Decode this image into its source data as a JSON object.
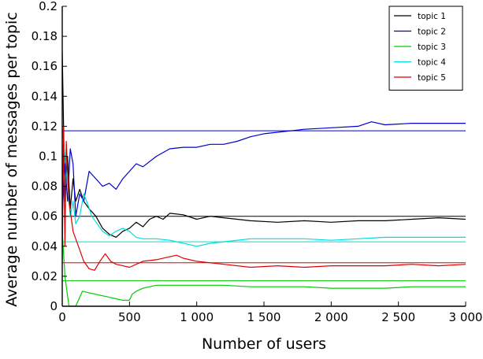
{
  "chart_data": {
    "type": "line",
    "xlabel": "Number of users",
    "ylabel": "Average number of messages per topic",
    "xlim": [
      0,
      3000
    ],
    "ylim": [
      0,
      0.2
    ],
    "x_ticks": [
      {
        "value": 0,
        "label": "0"
      },
      {
        "value": 500,
        "label": "500"
      },
      {
        "value": 1000,
        "label": "1 000"
      },
      {
        "value": 1500,
        "label": "1 500"
      },
      {
        "value": 2000,
        "label": "2 000"
      },
      {
        "value": 2500,
        "label": "2 500"
      },
      {
        "value": 3000,
        "label": "3 000"
      }
    ],
    "y_ticks": [
      {
        "value": 0,
        "label": "0"
      },
      {
        "value": 0.02,
        "label": "0.02"
      },
      {
        "value": 0.04,
        "label": "0.04"
      },
      {
        "value": 0.06,
        "label": "0.06"
      },
      {
        "value": 0.08,
        "label": "0.08"
      },
      {
        "value": 0.1,
        "label": "0.1"
      },
      {
        "value": 0.12,
        "label": "0.12"
      },
      {
        "value": 0.14,
        "label": "0.14"
      },
      {
        "value": 0.16,
        "label": "0.16"
      },
      {
        "value": 0.18,
        "label": "0.18"
      },
      {
        "value": 0.2,
        "label": "0.2"
      }
    ],
    "grid": false,
    "legend_position": "top-right",
    "series": [
      {
        "name": "topic 1",
        "color": "#000000",
        "reference": 0.06,
        "x": [
          0,
          10,
          20,
          40,
          60,
          80,
          100,
          130,
          160,
          200,
          250,
          300,
          350,
          400,
          450,
          500,
          550,
          600,
          650,
          700,
          750,
          800,
          900,
          1000,
          1100,
          1200,
          1400,
          1600,
          1800,
          2000,
          2200,
          2400,
          2600,
          2800,
          3000
        ],
        "values": [
          0.17,
          0.12,
          0.07,
          0.1,
          0.065,
          0.085,
          0.07,
          0.078,
          0.07,
          0.065,
          0.06,
          0.052,
          0.048,
          0.046,
          0.05,
          0.052,
          0.056,
          0.053,
          0.058,
          0.06,
          0.058,
          0.062,
          0.061,
          0.058,
          0.06,
          0.059,
          0.057,
          0.056,
          0.057,
          0.056,
          0.057,
          0.057,
          0.058,
          0.059,
          0.058
        ]
      },
      {
        "name": "topic 2",
        "color": "#0000cc",
        "reference": 0.117,
        "x": [
          0,
          20,
          40,
          60,
          80,
          100,
          130,
          160,
          200,
          250,
          300,
          350,
          400,
          450,
          500,
          550,
          600,
          700,
          800,
          900,
          1000,
          1100,
          1200,
          1300,
          1400,
          1500,
          1600,
          1800,
          2000,
          2200,
          2300,
          2400,
          2600,
          2800,
          3000
        ],
        "values": [
          0.06,
          0.095,
          0.07,
          0.105,
          0.095,
          0.06,
          0.075,
          0.07,
          0.09,
          0.085,
          0.08,
          0.082,
          0.078,
          0.085,
          0.09,
          0.095,
          0.093,
          0.1,
          0.105,
          0.106,
          0.106,
          0.108,
          0.108,
          0.11,
          0.113,
          0.115,
          0.116,
          0.118,
          0.119,
          0.12,
          0.123,
          0.121,
          0.122,
          0.122,
          0.122
        ]
      },
      {
        "name": "topic 3",
        "color": "#00cc00",
        "reference": 0.017,
        "x": [
          0,
          20,
          50,
          100,
          150,
          200,
          250,
          300,
          350,
          400,
          450,
          500,
          520,
          550,
          600,
          700,
          800,
          900,
          1000,
          1200,
          1400,
          1600,
          1800,
          2000,
          2200,
          2400,
          2600,
          2800,
          3000
        ],
        "values": [
          0.05,
          0.02,
          0.0,
          0.0,
          0.01,
          0.009,
          0.008,
          0.007,
          0.006,
          0.005,
          0.004,
          0.004,
          0.008,
          0.01,
          0.012,
          0.014,
          0.014,
          0.014,
          0.014,
          0.014,
          0.013,
          0.013,
          0.013,
          0.012,
          0.012,
          0.012,
          0.013,
          0.013,
          0.013
        ]
      },
      {
        "name": "topic 4",
        "color": "#00dddd",
        "reference": 0.043,
        "x": [
          0,
          20,
          40,
          60,
          80,
          100,
          130,
          160,
          190,
          220,
          260,
          300,
          350,
          400,
          450,
          500,
          550,
          600,
          700,
          800,
          900,
          1000,
          1100,
          1200,
          1400,
          1600,
          1800,
          2000,
          2200,
          2400,
          2600,
          2800,
          3000
        ],
        "values": [
          0.12,
          0.1,
          0.08,
          0.06,
          0.07,
          0.055,
          0.06,
          0.075,
          0.068,
          0.06,
          0.055,
          0.05,
          0.047,
          0.05,
          0.052,
          0.05,
          0.046,
          0.045,
          0.045,
          0.044,
          0.042,
          0.04,
          0.042,
          0.043,
          0.045,
          0.045,
          0.045,
          0.044,
          0.045,
          0.046,
          0.046,
          0.046,
          0.046
        ]
      },
      {
        "name": "topic 5",
        "color": "#dd0000",
        "reference": 0.029,
        "x": [
          0,
          10,
          20,
          30,
          50,
          80,
          120,
          160,
          200,
          240,
          280,
          320,
          360,
          400,
          450,
          500,
          600,
          700,
          800,
          850,
          900,
          1000,
          1200,
          1400,
          1600,
          1800,
          2000,
          2200,
          2400,
          2600,
          2800,
          3000
        ],
        "values": [
          0.03,
          0.12,
          0.04,
          0.11,
          0.07,
          0.05,
          0.04,
          0.03,
          0.025,
          0.024,
          0.03,
          0.035,
          0.03,
          0.028,
          0.027,
          0.026,
          0.03,
          0.031,
          0.033,
          0.034,
          0.032,
          0.03,
          0.028,
          0.026,
          0.027,
          0.026,
          0.027,
          0.027,
          0.027,
          0.028,
          0.027,
          0.028
        ]
      }
    ]
  }
}
